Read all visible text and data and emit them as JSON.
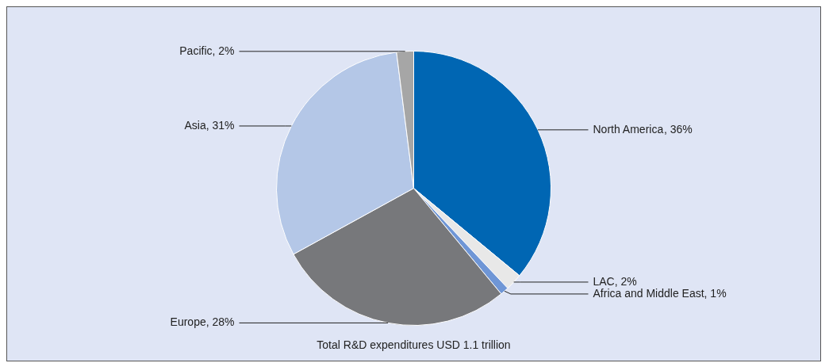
{
  "chart_data": {
    "type": "pie",
    "categories": [
      "North America",
      "LAC",
      "Africa and Middle East",
      "Europe",
      "Asia",
      "Pacific"
    ],
    "values": [
      36,
      2,
      1,
      28,
      31,
      2
    ],
    "colors": [
      "#0066b3",
      "#e8e8e8",
      "#6f96d6",
      "#77787b",
      "#b4c7e7",
      "#a6a6a6"
    ],
    "value_labels": [
      ", 36%",
      ", 2%",
      ", 1%",
      ", 28%",
      ", 31%",
      ", 2%"
    ],
    "legend": false,
    "annotations": [
      "Total R&D expenditures USD 1.1 trillion"
    ]
  }
}
